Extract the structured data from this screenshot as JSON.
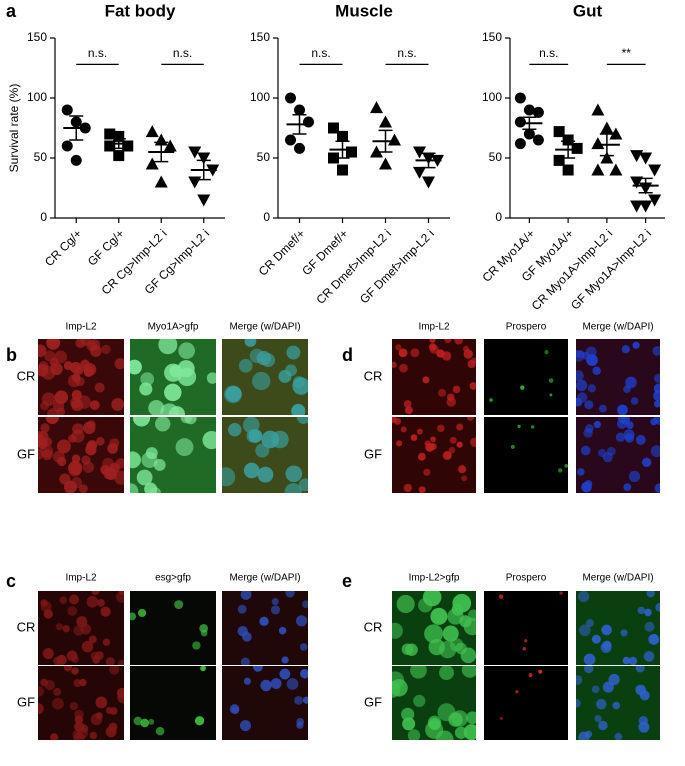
{
  "panel_labels": [
    "a",
    "b",
    "c",
    "d",
    "e"
  ],
  "chart_data": [
    {
      "type": "dot",
      "title": "Fat body",
      "ylabel": "Survival rate (%)",
      "categories": [
        "CR Cg/+",
        "GF Cg/+",
        "CR Cg>Imp-L2 i",
        "GF Cg>Imp-L2 i"
      ],
      "points": [
        [
          90,
          80,
          75,
          60,
          48
        ],
        [
          70,
          68,
          60,
          60,
          52
        ],
        [
          72,
          65,
          60,
          45,
          30
        ],
        [
          55,
          50,
          40,
          30,
          15
        ]
      ],
      "means": [
        75,
        62,
        55,
        40
      ],
      "sems": [
        10,
        4,
        8,
        8
      ],
      "annotations": [
        "n.s.",
        "n.s."
      ],
      "ylim": [
        0,
        150
      ],
      "yticks": [
        0,
        50,
        100,
        150
      ]
    },
    {
      "type": "dot",
      "title": "Muscle",
      "categories": [
        "CR Dmef/+",
        "GF Dmef/+",
        "CR Dmef>Imp-L2 i",
        "GF Dmef>Imp-L2 i"
      ],
      "points": [
        [
          100,
          90,
          80,
          65,
          58
        ],
        [
          75,
          68,
          55,
          50,
          40
        ],
        [
          92,
          80,
          65,
          55,
          45
        ],
        [
          55,
          50,
          48,
          38,
          30
        ]
      ],
      "means": [
        78,
        57,
        64,
        48
      ],
      "sems": [
        8,
        7,
        9,
        6
      ],
      "annotations": [
        "n.s.",
        "n.s."
      ],
      "ylim": [
        0,
        150
      ],
      "yticks": [
        0,
        50,
        100,
        150
      ]
    },
    {
      "type": "dot",
      "title": "Gut",
      "categories": [
        "CR Myo1A/+",
        "GF Myo1A/+",
        "CR Myo1A>Imp-L2 i",
        "GF Myo1A>Imp-L2 i"
      ],
      "points": [
        [
          100,
          90,
          88,
          80,
          70,
          65,
          62
        ],
        [
          72,
          65,
          58,
          48,
          40
        ],
        [
          90,
          75,
          70,
          62,
          50,
          40,
          40
        ],
        [
          52,
          50,
          40,
          30,
          25,
          15,
          10,
          10
        ]
      ],
      "means": [
        79,
        57,
        61,
        27
      ],
      "sems": [
        5,
        7,
        9,
        6
      ],
      "annotations": [
        "n.s.",
        "**"
      ],
      "ylim": [
        0,
        150
      ],
      "yticks": [
        0,
        50,
        100,
        150
      ]
    }
  ],
  "image_panels": [
    {
      "columns": [
        "Imp-L2",
        "Myo1A>gfp",
        "Merge (w/DAPI)"
      ],
      "rows": [
        "CR",
        "GF"
      ]
    },
    {
      "columns": [
        "Imp-L2",
        "esg>gfp",
        "Merge (w/DAPI)"
      ],
      "rows": [
        "CR",
        "GF"
      ]
    },
    {
      "columns": [
        "Imp-L2",
        "Prospero",
        "Merge (w/DAPI)"
      ],
      "rows": [
        "CR",
        "GF"
      ]
    },
    {
      "columns": [
        "Imp-L2>gfp",
        "Prospero",
        "Merge (w/DAPI)"
      ],
      "rows": [
        "CR",
        "GF"
      ]
    }
  ]
}
